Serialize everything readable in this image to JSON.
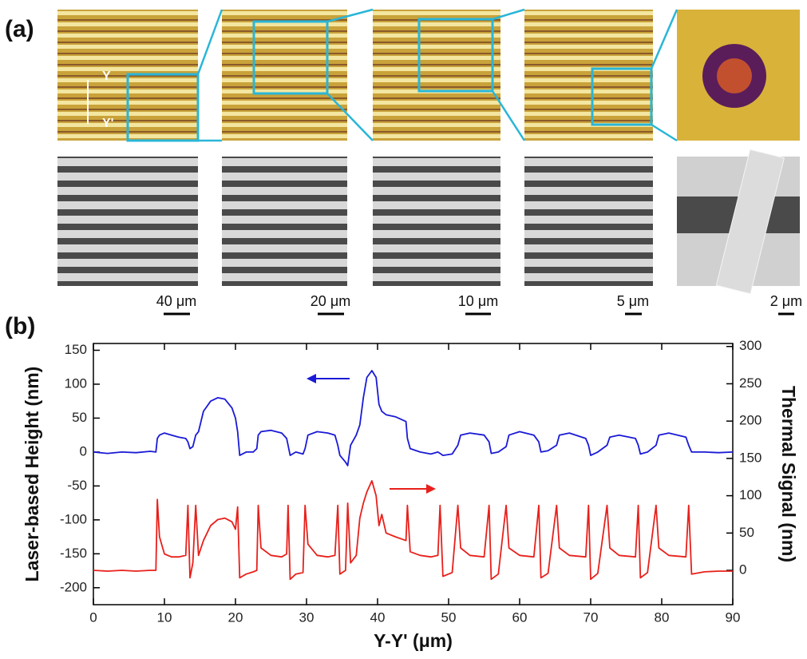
{
  "panel_labels": [
    "(a)",
    "(b)"
  ],
  "markers": [
    "Y",
    "Y'"
  ],
  "scale_bars": [
    "40 μm",
    "20 μm",
    "10 μm",
    "5 μm",
    "2 μm"
  ],
  "chart_data": {
    "type": "line",
    "xlabel": "Y-Y' (μm)",
    "ylabel": "Laser-based Height (nm)",
    "y2label": "Thermal Signal (nm)",
    "xlim": [
      0,
      90
    ],
    "xticks": [
      0,
      10,
      20,
      30,
      40,
      50,
      60,
      70,
      80,
      90
    ],
    "ylim": [
      -225,
      160
    ],
    "yticks": [
      -200,
      -150,
      -100,
      -50,
      0,
      50,
      100,
      150
    ],
    "y2lim": [
      -46,
      304
    ],
    "y2ticks": [
      0,
      50,
      100,
      150,
      200,
      250,
      300
    ],
    "x": [
      0,
      2,
      4,
      6,
      8,
      8.8,
      9,
      9.3,
      10,
      11,
      12,
      13,
      13.3,
      13.6,
      14,
      14.4,
      14.8,
      15.5,
      16.5,
      17.5,
      18.5,
      19.5,
      20,
      20.3,
      20.6,
      21.5,
      22.5,
      23,
      23.2,
      23.6,
      25,
      26.5,
      27.2,
      27.4,
      27.7,
      28.5,
      29.5,
      29.8,
      30.2,
      31.5,
      33,
      34,
      34.4,
      34.7,
      35.5,
      35.8,
      36.2,
      37,
      37.5,
      38,
      38.5,
      39.2,
      39.8,
      40.2,
      40.6,
      41.2,
      42.5,
      44,
      44.2,
      44.6,
      46,
      47.5,
      48.5,
      48.8,
      49.2,
      50.5,
      51.3,
      51.7,
      53,
      55,
      55.7,
      56,
      57,
      58.1,
      58.5,
      60,
      62,
      62.7,
      63,
      64,
      65.2,
      65.6,
      67,
      69.3,
      69.7,
      70,
      71,
      72.3,
      72.7,
      74,
      76.3,
      76.7,
      77,
      78,
      79.2,
      79.6,
      81,
      83.4,
      83.8,
      84.2,
      86,
      88,
      90
    ],
    "series": [
      {
        "color": "#1a1ad6",
        "values": [
          0,
          -2,
          0,
          -1,
          1,
          0,
          20,
          25,
          28,
          25,
          22,
          20,
          15,
          5,
          8,
          25,
          30,
          60,
          75,
          80,
          78,
          65,
          50,
          30,
          -5,
          0,
          0,
          5,
          25,
          30,
          32,
          28,
          20,
          10,
          -5,
          0,
          -3,
          5,
          25,
          30,
          28,
          25,
          10,
          -5,
          -15,
          -20,
          10,
          25,
          40,
          80,
          110,
          120,
          110,
          70,
          60,
          55,
          52,
          45,
          20,
          5,
          0,
          -3,
          0,
          -2,
          -5,
          -3,
          10,
          25,
          28,
          25,
          15,
          -2,
          0,
          8,
          25,
          30,
          25,
          15,
          0,
          2,
          10,
          25,
          28,
          20,
          10,
          -5,
          0,
          10,
          22,
          25,
          20,
          10,
          -3,
          0,
          10,
          25,
          28,
          22,
          10,
          0,
          0,
          -1,
          0
        ]
      },
      {
        "color": "#e8201b",
        "axis": "y2",
        "values": [
          0,
          -1,
          0,
          -1,
          0,
          0,
          95,
          45,
          22,
          18,
          18,
          20,
          87,
          -10,
          10,
          87,
          20,
          40,
          60,
          68,
          70,
          65,
          55,
          85,
          -10,
          -5,
          -2,
          0,
          87,
          30,
          20,
          18,
          22,
          87,
          -12,
          -5,
          -3,
          87,
          35,
          20,
          18,
          20,
          87,
          -5,
          0,
          90,
          10,
          20,
          70,
          90,
          105,
          120,
          100,
          60,
          75,
          50,
          45,
          40,
          87,
          25,
          20,
          18,
          20,
          87,
          -8,
          -3,
          87,
          30,
          20,
          18,
          87,
          -12,
          -5,
          87,
          30,
          20,
          18,
          87,
          -10,
          -4,
          87,
          30,
          20,
          18,
          87,
          -12,
          -4,
          87,
          30,
          20,
          18,
          87,
          -10,
          -3,
          87,
          30,
          20,
          18,
          87,
          -5,
          -2,
          -1,
          -1
        ]
      }
    ]
  }
}
